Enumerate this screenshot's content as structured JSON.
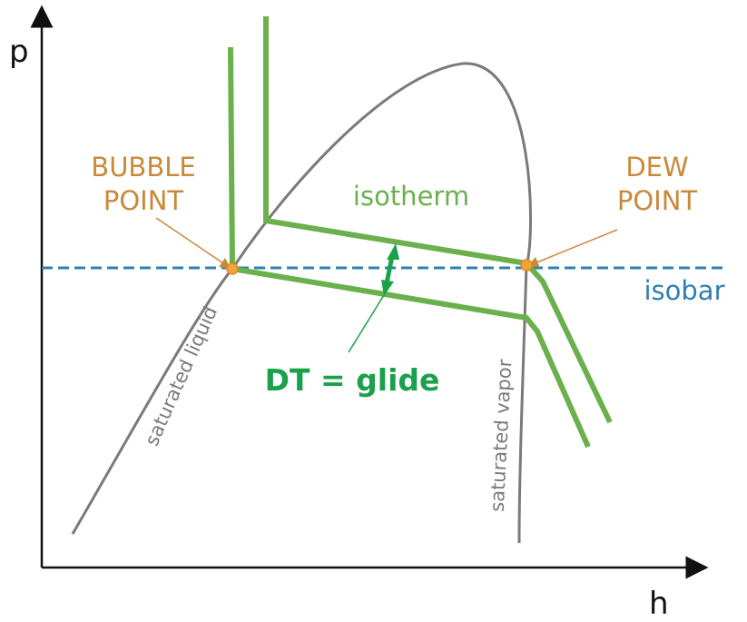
{
  "axes": {
    "y_label": "p",
    "x_label": "h"
  },
  "labels": {
    "bubble_point": [
      "BUBBLE",
      "POINT"
    ],
    "dew_point": [
      "DEW",
      "POINT"
    ],
    "isotherm": "isotherm",
    "isobar": "isobar",
    "glide": "DT = glide",
    "saturated_liquid": "saturated liquid",
    "saturated_vapor": "saturated vapor"
  },
  "colors": {
    "isotherm_green": "#6ab04c",
    "glide_green": "#1aa14a",
    "isobar_blue": "#2f7fb5",
    "point_orange": "#f2a33a",
    "point_label": "#c9893a",
    "saturation_gray": "#7a7a7a",
    "axis": "#111111"
  }
}
